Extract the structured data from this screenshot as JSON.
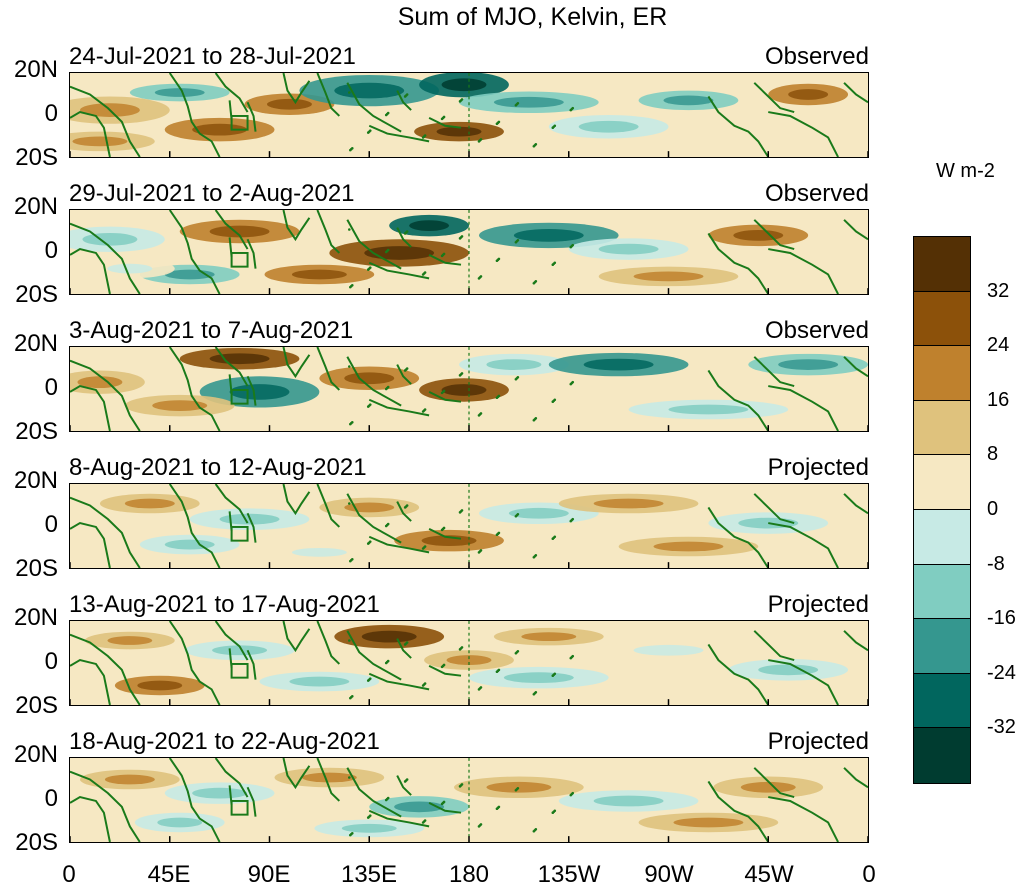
{
  "title": "Sum of MJO, Kelvin, ER",
  "panels": [
    {
      "date_range": "24-Jul-2021 to 28-Jul-2021",
      "status": "Observed"
    },
    {
      "date_range": "29-Jul-2021 to 2-Aug-2021",
      "status": "Observed"
    },
    {
      "date_range": "3-Aug-2021 to 7-Aug-2021",
      "status": "Observed"
    },
    {
      "date_range": "8-Aug-2021 to 12-Aug-2021",
      "status": "Projected"
    },
    {
      "date_range": "13-Aug-2021 to 17-Aug-2021",
      "status": "Projected"
    },
    {
      "date_range": "18-Aug-2021 to 22-Aug-2021",
      "status": "Projected"
    }
  ],
  "lat_labels": {
    "top": "20N",
    "mid": "0",
    "bottom": "20S"
  },
  "lon_labels": [
    "0",
    "45E",
    "90E",
    "135E",
    "180",
    "135W",
    "90W",
    "45W",
    "0"
  ],
  "colorbar": {
    "units": "W m-2",
    "labels": [
      "32",
      "24",
      "16",
      "8",
      "0",
      "-8",
      "-16",
      "-24",
      "-32"
    ],
    "colors": [
      "#543005",
      "#8c510a",
      "#bf812d",
      "#dfc27d",
      "#f6e8c3",
      "#c7eae5",
      "#80cdc1",
      "#35978f",
      "#01665e",
      "#003c30"
    ]
  },
  "map_colors": {
    "coast": "#1a7a1a",
    "dateline": "#1a7a1a"
  }
}
